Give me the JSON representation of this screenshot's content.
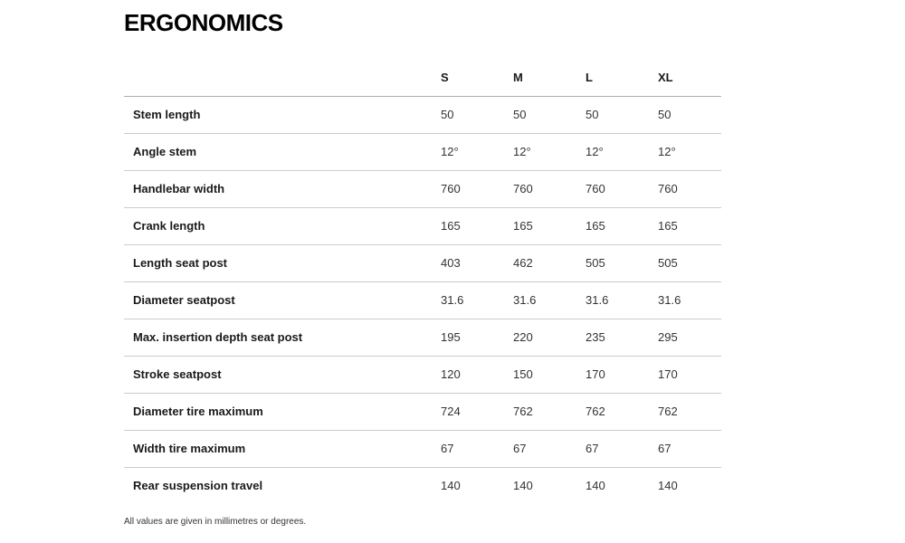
{
  "page": {
    "title": "ERGONOMICS",
    "footnote": "All values are given in millimetres or degrees."
  },
  "table": {
    "label_column_header": "",
    "size_headers": [
      "S",
      "M",
      "L",
      "XL"
    ],
    "rows": [
      {
        "label": "Stem length",
        "values": [
          "50",
          "50",
          "50",
          "50"
        ]
      },
      {
        "label": "Angle stem",
        "values": [
          "12°",
          "12°",
          "12°",
          "12°"
        ]
      },
      {
        "label": "Handlebar width",
        "values": [
          "760",
          "760",
          "760",
          "760"
        ]
      },
      {
        "label": "Crank length",
        "values": [
          "165",
          "165",
          "165",
          "165"
        ]
      },
      {
        "label": "Length seat post",
        "values": [
          "403",
          "462",
          "505",
          "505"
        ]
      },
      {
        "label": "Diameter seatpost",
        "values": [
          "31.6",
          "31.6",
          "31.6",
          "31.6"
        ]
      },
      {
        "label": "Max. insertion depth seat post",
        "values": [
          "195",
          "220",
          "235",
          "295"
        ]
      },
      {
        "label": "Stroke seatpost",
        "values": [
          "120",
          "150",
          "170",
          "170"
        ]
      },
      {
        "label": "Diameter tire maximum",
        "values": [
          "724",
          "762",
          "762",
          "762"
        ]
      },
      {
        "label": "Width tire maximum",
        "values": [
          "67",
          "67",
          "67",
          "67"
        ]
      },
      {
        "label": "Rear suspension travel",
        "values": [
          "140",
          "140",
          "140",
          "140"
        ]
      }
    ]
  }
}
